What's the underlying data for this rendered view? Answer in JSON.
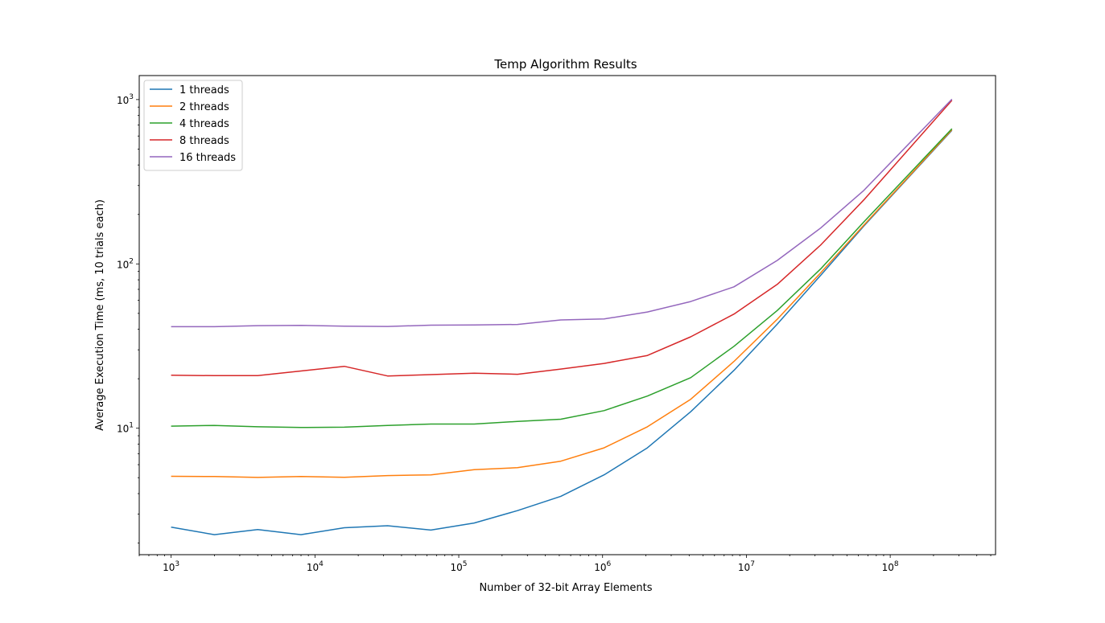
{
  "chart_data": {
    "type": "line",
    "title": "Temp Algorithm Results",
    "xlabel": "Number of 32-bit Array Elements",
    "ylabel": "Average Execution Time (ms, 10 trials each)",
    "xscale": "log",
    "yscale": "log",
    "xlim": [
      600,
      540000000
    ],
    "ylim": [
      1.7,
      1400
    ],
    "grid": false,
    "legend_position": "top-left",
    "x_ticks": [
      {
        "value": 1000,
        "base": "10",
        "exp": "3"
      },
      {
        "value": 10000,
        "base": "10",
        "exp": "4"
      },
      {
        "value": 100000,
        "base": "10",
        "exp": "5"
      },
      {
        "value": 1000000,
        "base": "10",
        "exp": "6"
      },
      {
        "value": 10000000,
        "base": "10",
        "exp": "7"
      },
      {
        "value": 100000000,
        "base": "10",
        "exp": "8"
      }
    ],
    "y_ticks": [
      {
        "value": 10,
        "base": "10",
        "exp": "1"
      },
      {
        "value": 100,
        "base": "10",
        "exp": "2"
      },
      {
        "value": 1000,
        "base": "10",
        "exp": "3"
      }
    ],
    "x": [
      1000,
      2000,
      4000,
      8000,
      16000,
      32000,
      64000,
      128000,
      256000,
      512000,
      1024000,
      2048000,
      4096000,
      8192000,
      16384000,
      32768000,
      65536000,
      268435456
    ],
    "series": [
      {
        "name": "1 threads",
        "color": "#1f77b4",
        "values": [
          2.5,
          2.25,
          2.42,
          2.25,
          2.48,
          2.55,
          2.4,
          2.65,
          3.15,
          3.85,
          5.2,
          7.6,
          12.6,
          22.5,
          43,
          85,
          170,
          650
        ]
      },
      {
        "name": "2 threads",
        "color": "#ff7f0e",
        "values": [
          5.1,
          5.08,
          5.02,
          5.08,
          5.03,
          5.15,
          5.2,
          5.6,
          5.75,
          6.3,
          7.6,
          10.2,
          15,
          25.5,
          46,
          88,
          172,
          655
        ]
      },
      {
        "name": "4 threads",
        "color": "#2ca02c",
        "values": [
          10.3,
          10.4,
          10.2,
          10.1,
          10.15,
          10.4,
          10.6,
          10.6,
          11,
          11.35,
          12.8,
          15.7,
          20.3,
          31.5,
          52,
          93,
          180,
          665
        ]
      },
      {
        "name": "8 threads",
        "color": "#d62728",
        "values": [
          21,
          20.9,
          20.9,
          22.3,
          23.8,
          20.8,
          21.2,
          21.6,
          21.3,
          22.9,
          24.8,
          27.7,
          36,
          49.5,
          75,
          130,
          245,
          990
        ]
      },
      {
        "name": "16 threads",
        "color": "#9467bd",
        "values": [
          41.5,
          41.5,
          42.1,
          42.3,
          41.8,
          41.6,
          42.4,
          42.5,
          42.8,
          45.6,
          46.2,
          51,
          59,
          72.5,
          105,
          165,
          280,
          1005
        ]
      }
    ]
  }
}
